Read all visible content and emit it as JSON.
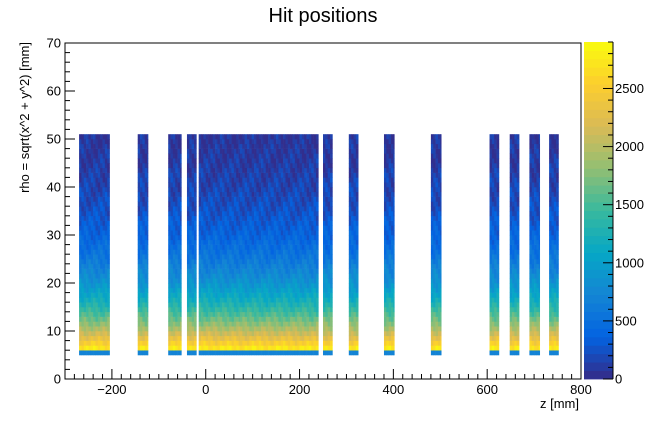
{
  "chart_data": {
    "type": "heatmap",
    "title": "Hit positions",
    "xlabel": "z [mm]",
    "ylabel": "rho = sqrt(x^2 + y^2) [mm]",
    "xlim": [
      -300,
      800
    ],
    "ylim": [
      0,
      70
    ],
    "x_ticks": [
      -200,
      0,
      200,
      400,
      600,
      800
    ],
    "y_ticks": [
      0,
      10,
      20,
      30,
      40,
      50,
      60,
      70
    ],
    "colorbar": {
      "min": 0,
      "max": 2900,
      "ticks": [
        0,
        500,
        1000,
        1500,
        2000,
        2500
      ]
    },
    "grid": false,
    "rho_range": [
      5,
      51
    ],
    "z_occupied_bands": [
      [
        -270,
        -205
      ],
      [
        -145,
        -123
      ],
      [
        -80,
        -52
      ],
      [
        -40,
        -20
      ],
      [
        -15,
        50
      ],
      [
        50,
        73
      ],
      [
        73,
        140
      ],
      [
        140,
        155
      ],
      [
        155,
        190
      ],
      [
        190,
        205
      ],
      [
        205,
        240
      ],
      [
        250,
        270
      ],
      [
        305,
        325
      ],
      [
        380,
        402
      ],
      [
        480,
        502
      ],
      [
        605,
        625
      ],
      [
        648,
        668
      ],
      [
        690,
        712
      ],
      [
        732,
        752
      ]
    ],
    "colorscale": [
      "#352a87",
      "#0363e1",
      "#1485d4",
      "#06a7c6",
      "#38b99e",
      "#92bf73",
      "#d9ba56",
      "#fcce2e",
      "#f9fb0e"
    ]
  }
}
